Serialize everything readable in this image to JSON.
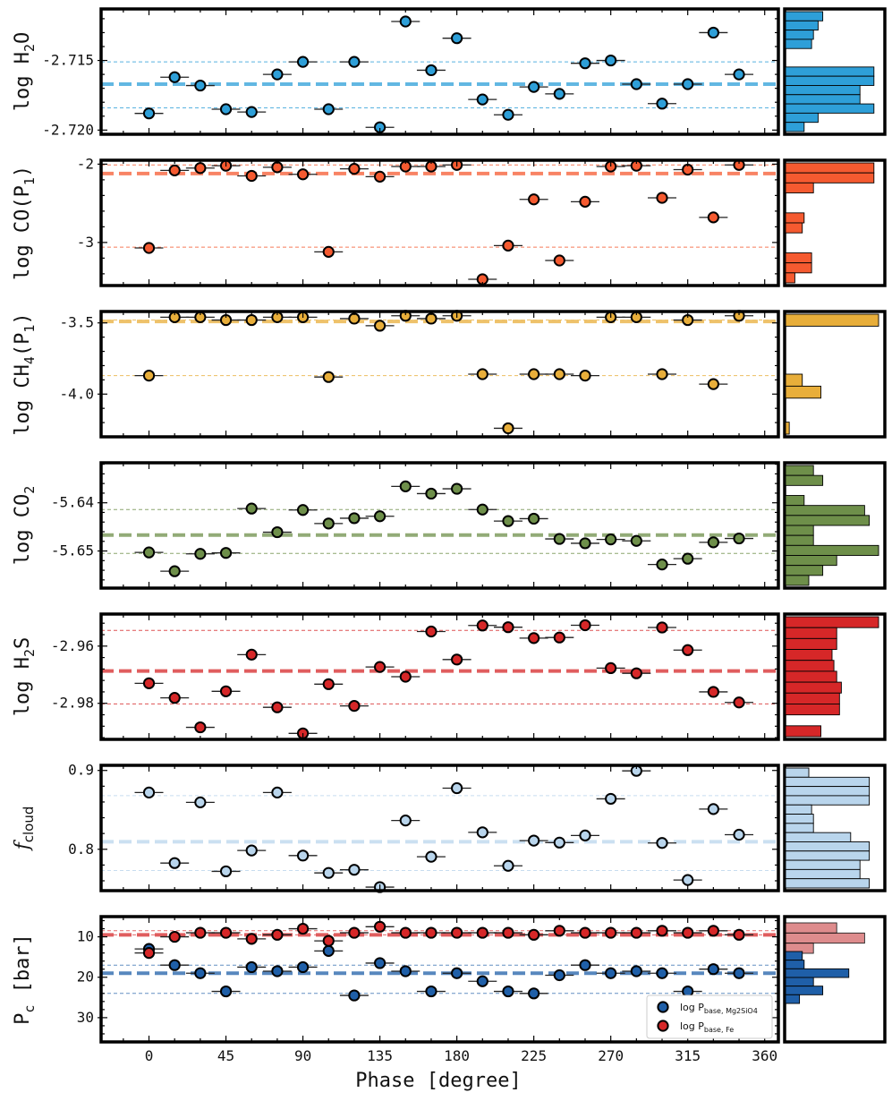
{
  "chart_data": {
    "type": "scatter",
    "title": "",
    "xlabel": "Phase [degree]",
    "xlim": [
      -28,
      368
    ],
    "xticks": [
      0,
      45,
      90,
      135,
      180,
      225,
      270,
      315,
      360
    ],
    "xtick_labels": [
      "0",
      "45",
      "90",
      "135",
      "180",
      "225",
      "270",
      "315",
      "360"
    ],
    "panels": [
      {
        "id": "h2o",
        "ylabel_main": "log H",
        "ylabel_sub": "2",
        "ylabel_tail": "O",
        "color": "#2e9fd8",
        "ylim": [
          -2.7203,
          -2.7113
        ],
        "yticks": [
          -2.715,
          -2.72
        ],
        "ytick_labels": [
          "-2.715",
          "-2.720"
        ],
        "median": -2.7167,
        "lower": -2.7184,
        "upper": -2.7151,
        "x": [
          0,
          15,
          30,
          45,
          60,
          75,
          90,
          105,
          120,
          135,
          150,
          165,
          180,
          195,
          210,
          225,
          240,
          255,
          270,
          285,
          300,
          315,
          330,
          345
        ],
        "y": [
          -2.7188,
          -2.7162,
          -2.7168,
          -2.7185,
          -2.7187,
          -2.716,
          -2.7151,
          -2.7185,
          -2.7151,
          -2.7198,
          -2.7122,
          -2.7157,
          -2.7134,
          -2.7178,
          -2.7189,
          -2.7169,
          -2.7174,
          -2.7152,
          -2.715,
          -2.7167,
          -2.7181,
          -2.7167,
          -2.713,
          -2.716
        ],
        "hist": [
          0.4,
          0.35,
          0.3,
          0.28,
          0,
          0,
          0.95,
          0.95,
          0.8,
          0.8,
          0.95,
          0.35,
          0.2
        ]
      },
      {
        "id": "co",
        "ylabel_main": "log CO(P",
        "ylabel_sub": "1",
        "ylabel_tail": ")",
        "color": "#f55a30",
        "ylim": [
          -3.55,
          -1.95
        ],
        "yticks": [
          -2,
          -3
        ],
        "ytick_labels": [
          "-2",
          "-3"
        ],
        "median": -2.12,
        "lower": -3.06,
        "upper": -2.01,
        "x": [
          0,
          15,
          30,
          45,
          60,
          75,
          90,
          105,
          120,
          135,
          150,
          165,
          180,
          195,
          210,
          225,
          240,
          255,
          270,
          285,
          300,
          315,
          330,
          345
        ],
        "y": [
          -3.07,
          -2.08,
          -2.05,
          -2.02,
          -2.15,
          -2.04,
          -2.13,
          -3.12,
          -2.06,
          -2.16,
          -2.03,
          -2.03,
          -2.01,
          -3.47,
          -3.04,
          -2.45,
          -3.23,
          -2.48,
          -2.03,
          -2.02,
          -2.43,
          -2.07,
          -2.68,
          -2.01
        ],
        "hist": [
          0.95,
          0.95,
          0.3,
          0,
          0,
          0.2,
          0.18,
          0,
          0,
          0.28,
          0.28,
          0.1
        ]
      },
      {
        "id": "ch4",
        "ylabel_main": "log CH",
        "ylabel_sub": "4",
        "ylabel_tail": "(P1)",
        "color": "#e8ae3a",
        "ylim": [
          -4.3,
          -3.42
        ],
        "yticks": [
          -3.5,
          -4.0
        ],
        "ytick_labels": [
          "-3.5",
          "-4.0"
        ],
        "median": -3.49,
        "lower": -3.87,
        "upper": -3.48,
        "x": [
          0,
          15,
          30,
          45,
          60,
          75,
          90,
          105,
          120,
          135,
          150,
          165,
          180,
          195,
          210,
          225,
          240,
          255,
          270,
          285,
          300,
          315,
          330,
          345
        ],
        "y": [
          -3.87,
          -3.46,
          -3.46,
          -3.48,
          -3.48,
          -3.46,
          -3.46,
          -3.88,
          -3.47,
          -3.52,
          -3.45,
          -3.47,
          -3.45,
          -3.86,
          -4.24,
          -3.86,
          -3.86,
          -3.87,
          -3.46,
          -3.46,
          -3.86,
          -3.48,
          -3.93,
          -3.45
        ],
        "hist": [
          1.0,
          0,
          0,
          0,
          0,
          0.18,
          0.38,
          0,
          0,
          0.04
        ]
      },
      {
        "id": "co2",
        "ylabel_main": "log CO",
        "ylabel_sub": "2",
        "ylabel_tail": "",
        "color": "#6e8f4a",
        "ylim": [
          -5.6577,
          -5.6317
        ],
        "yticks": [
          -5.64,
          -5.65
        ],
        "ytick_labels": [
          "-5.64",
          "-5.65"
        ],
        "median": -5.6467,
        "lower": -5.6505,
        "upper": -5.6414,
        "x": [
          0,
          15,
          30,
          45,
          60,
          75,
          90,
          105,
          120,
          135,
          150,
          165,
          180,
          195,
          210,
          225,
          240,
          255,
          270,
          285,
          300,
          315,
          330,
          345
        ],
        "y": [
          -5.6503,
          -5.6542,
          -5.6506,
          -5.6504,
          -5.6412,
          -5.6461,
          -5.6415,
          -5.6443,
          -5.6432,
          -5.6428,
          -5.6366,
          -5.6381,
          -5.6371,
          -5.6414,
          -5.6438,
          -5.6433,
          -5.6475,
          -5.6484,
          -5.6476,
          -5.6479,
          -5.6528,
          -5.6516,
          -5.6482,
          -5.6474
        ],
        "hist": [
          0.3,
          0.4,
          0,
          0.2,
          0.85,
          0.9,
          0.3,
          0.3,
          1.0,
          0.55,
          0.4,
          0.25
        ]
      },
      {
        "id": "h2s",
        "ylabel_main": "log H",
        "ylabel_sub": "2",
        "ylabel_tail": "S",
        "color": "#d62728",
        "ylim": [
          -2.9926,
          -2.9488
        ],
        "yticks": [
          -2.96,
          -2.98
        ],
        "ytick_labels": [
          "-2.96",
          "-2.98"
        ],
        "median": -2.9687,
        "lower": -2.9802,
        "upper": -2.9545,
        "x": [
          0,
          15,
          30,
          45,
          60,
          75,
          90,
          105,
          120,
          135,
          150,
          165,
          180,
          195,
          210,
          225,
          240,
          255,
          270,
          285,
          300,
          315,
          330,
          345
        ],
        "y": [
          -2.973,
          -2.9781,
          -2.9884,
          -2.9758,
          -2.963,
          -2.9814,
          -2.9905,
          -2.9733,
          -2.9809,
          -2.9673,
          -2.9707,
          -2.9549,
          -2.9647,
          -2.9528,
          -2.9534,
          -2.9572,
          -2.957,
          -2.9527,
          -2.9677,
          -2.9695,
          -2.9535,
          -2.9614,
          -2.976,
          -2.9797
        ],
        "hist": [
          1.0,
          0.55,
          0.55,
          0.5,
          0.52,
          0.55,
          0.6,
          0.58,
          0.58,
          0,
          0.38
        ]
      },
      {
        "id": "fcloud",
        "ylabel_main": "f",
        "ylabel_sub": "cloud",
        "ylabel_tail": "",
        "color": "#b9d5ec",
        "ylim": [
          0.7475,
          0.9065
        ],
        "yticks": [
          0.9,
          0.8
        ],
        "ytick_labels": [
          "0.9",
          "0.8"
        ],
        "median": 0.8095,
        "lower": 0.773,
        "upper": 0.868,
        "x": [
          0,
          15,
          30,
          45,
          60,
          75,
          90,
          105,
          120,
          135,
          150,
          165,
          180,
          195,
          210,
          225,
          240,
          255,
          270,
          285,
          300,
          315,
          330,
          345
        ],
        "y": [
          0.872,
          0.7825,
          0.8595,
          0.772,
          0.7985,
          0.872,
          0.792,
          0.77,
          0.774,
          0.752,
          0.8365,
          0.7905,
          0.8775,
          0.8215,
          0.779,
          0.811,
          0.8085,
          0.8175,
          0.864,
          0.8995,
          0.808,
          0.761,
          0.851,
          0.8185
        ],
        "hist": [
          0.25,
          0.9,
          0.9,
          0.9,
          0.28,
          0.3,
          0.3,
          0.7,
          0.9,
          0.9,
          0.8,
          0.8,
          0.9
        ]
      },
      {
        "id": "pc",
        "ylabel_main": "P",
        "ylabel_sub": "c",
        "ylabel_tail": " [bar]",
        "ylim": [
          5,
          36
        ],
        "yticks": [
          10,
          20,
          30
        ],
        "ytick_labels": [
          "10",
          "20",
          "30"
        ],
        "inverted": true,
        "series": [
          {
            "name": "log P_base,Mg2SiO4",
            "legend_main": "log P",
            "legend_sub": "base, Mg2SiO4",
            "color": "#1f5fa8",
            "median": 19.0,
            "lower": 17.0,
            "upper": 24.0,
            "x": [
              0,
              15,
              30,
              45,
              60,
              75,
              90,
              105,
              120,
              135,
              150,
              165,
              180,
              195,
              210,
              225,
              240,
              255,
              270,
              285,
              300,
              315,
              330,
              345
            ],
            "y": [
              13.0,
              17.0,
              19.0,
              23.5,
              17.5,
              18.5,
              17.5,
              13.5,
              24.5,
              16.5,
              18.5,
              23.5,
              19.0,
              21.0,
              23.5,
              24.0,
              19.5,
              17.0,
              19.0,
              18.5,
              19.0,
              23.5,
              18.0,
              19.0
            ]
          },
          {
            "name": "log P_base,Fe",
            "legend_main": "log P",
            "legend_sub": "base, Fe",
            "color": "#d62728",
            "median": 9.5,
            "lower": 8.5,
            "upper": 9.5,
            "x": [
              0,
              15,
              30,
              45,
              60,
              75,
              90,
              105,
              120,
              135,
              150,
              165,
              180,
              195,
              210,
              225,
              240,
              255,
              270,
              285,
              300,
              315,
              330,
              345
            ],
            "y": [
              14.0,
              10.0,
              9.0,
              9.0,
              10.5,
              9.5,
              8.0,
              11.0,
              9.0,
              7.5,
              9.0,
              9.0,
              9.0,
              9.0,
              9.0,
              9.5,
              8.5,
              9.0,
              9.0,
              9.0,
              8.5,
              9.0,
              8.5,
              9.5
            ]
          }
        ],
        "hist_red": [
          0.55,
          0.85,
          0.3
        ],
        "hist_blue": [
          0.18,
          0.2,
          0.68,
          0.3,
          0.4,
          0.15
        ]
      }
    ]
  }
}
